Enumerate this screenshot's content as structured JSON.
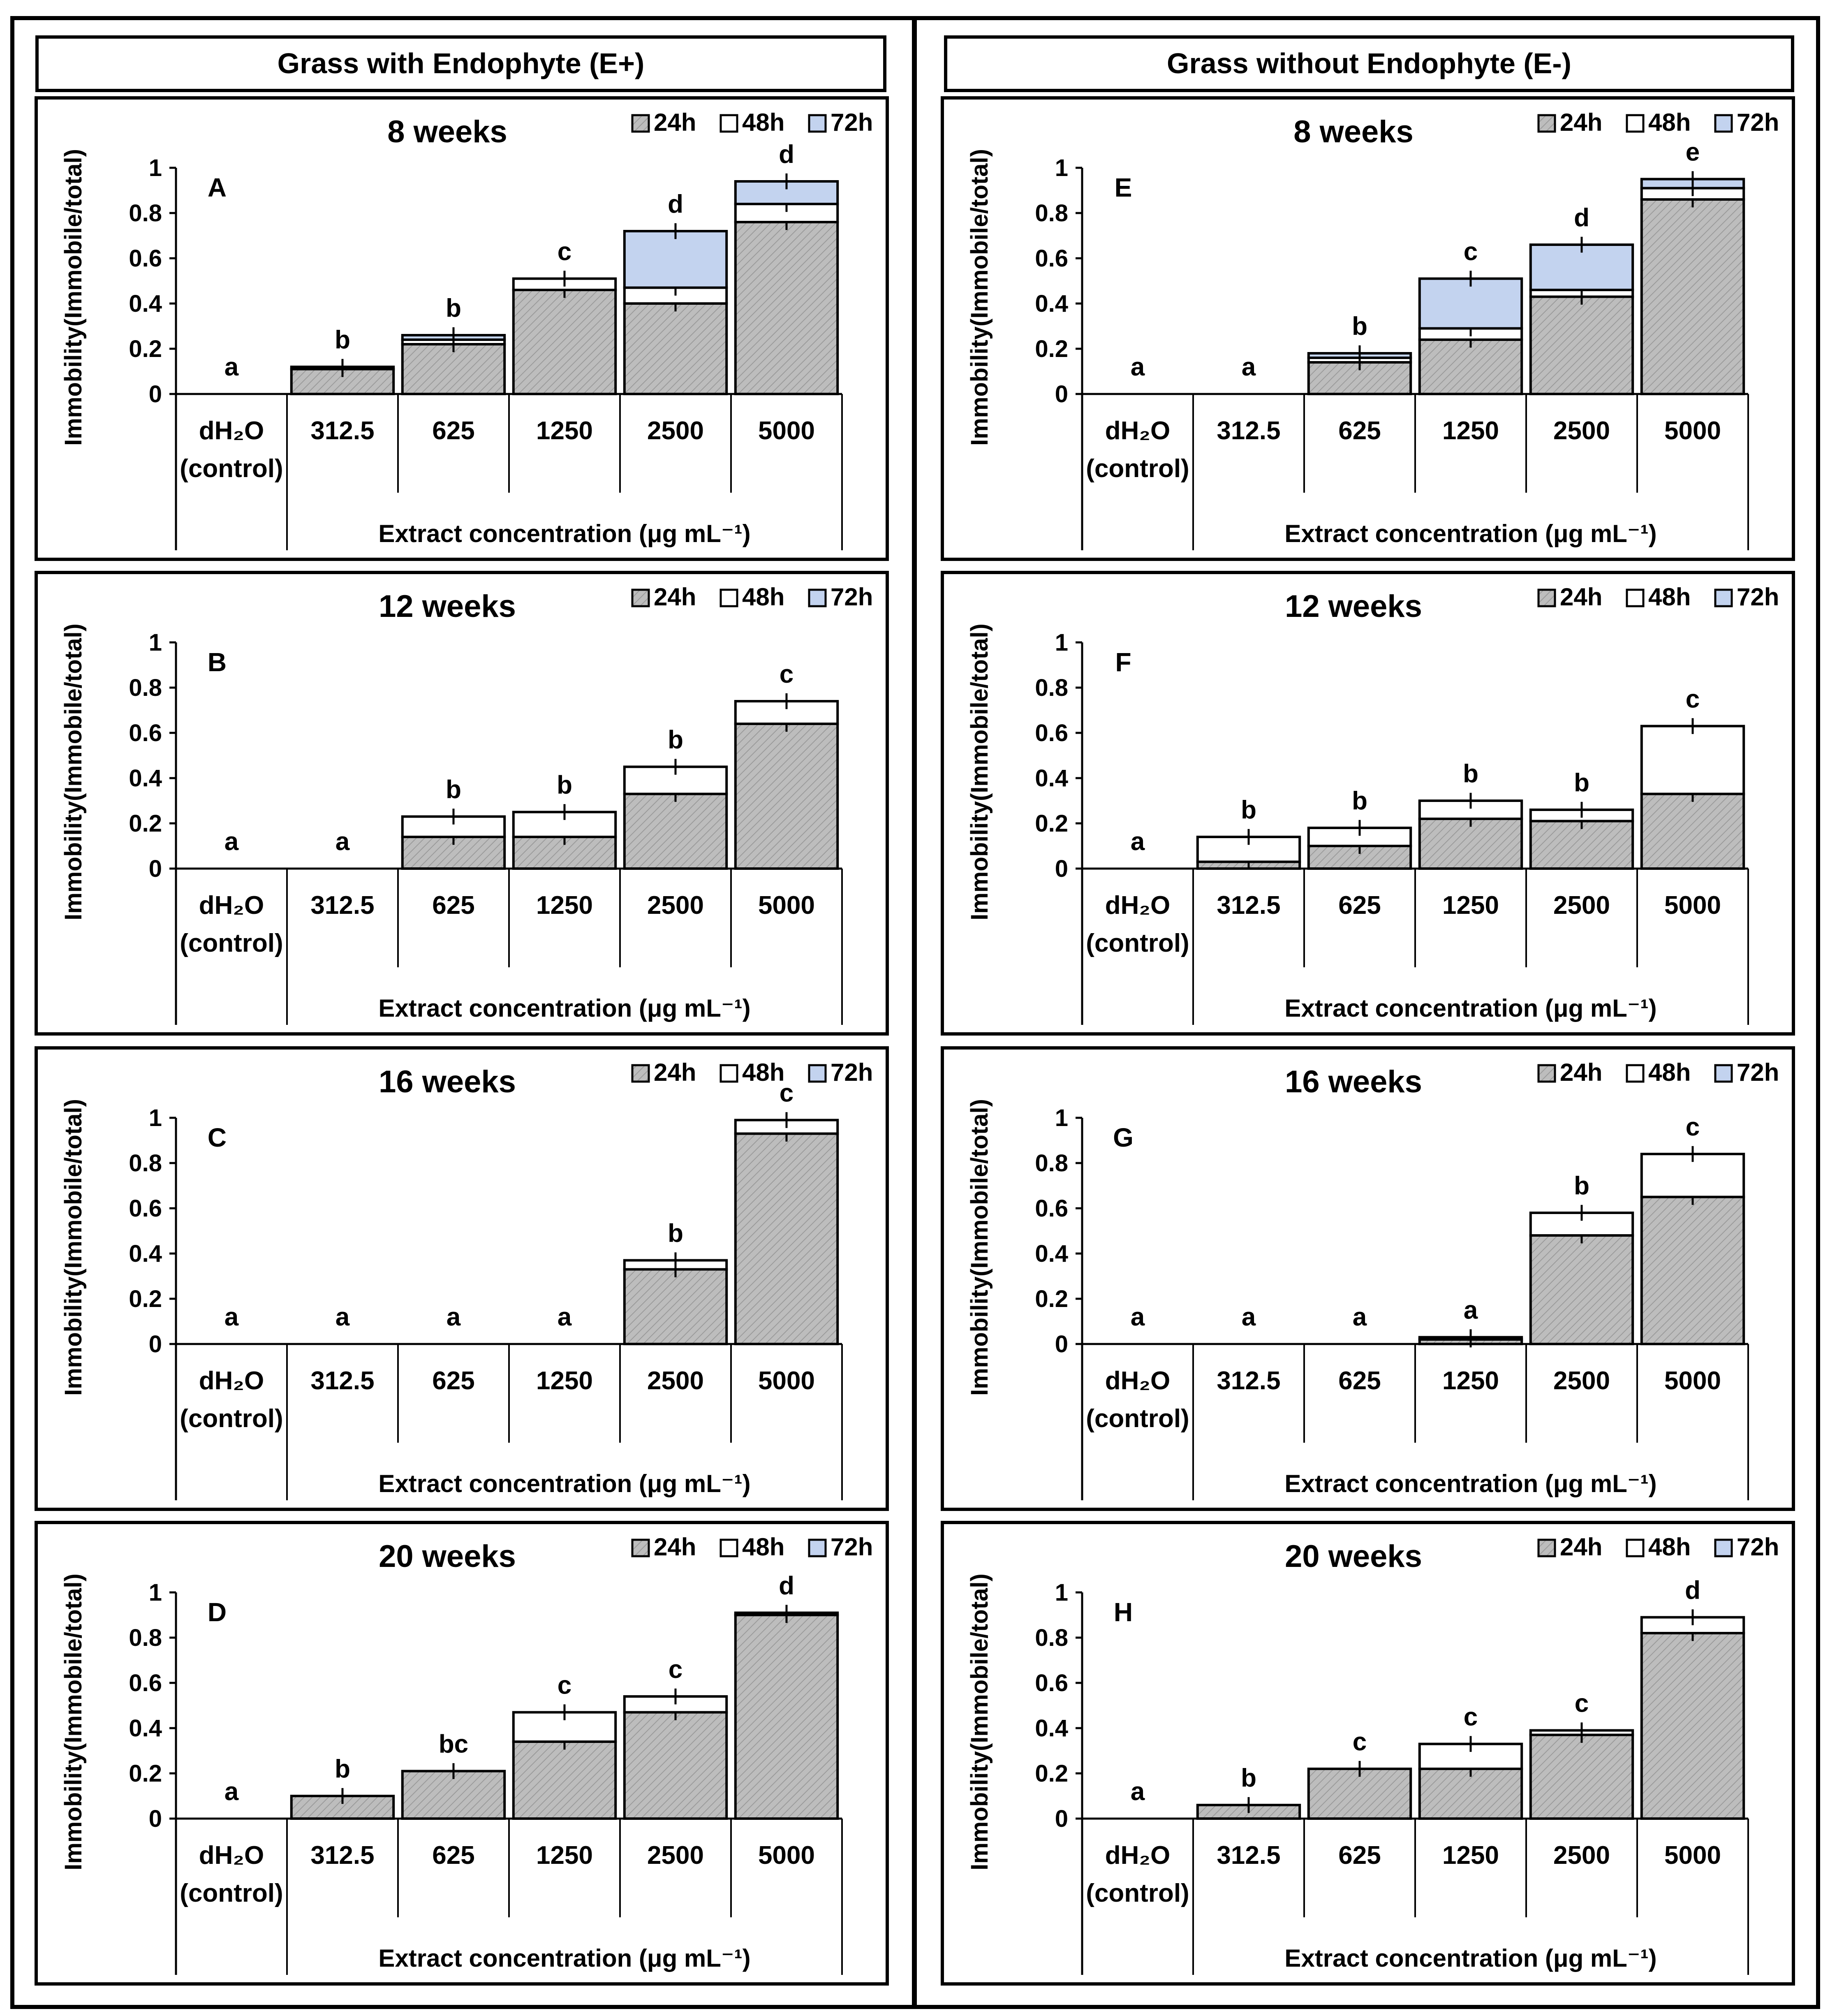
{
  "columns": [
    {
      "header": "Grass with Endophyte (E+)"
    },
    {
      "header": "Grass without Endophyte (E-)"
    }
  ],
  "legend": [
    {
      "label": "24h",
      "color": "#b8b8b8"
    },
    {
      "label": "48h",
      "color": "#ffffff"
    },
    {
      "label": "72h",
      "color": "#c3d3ef"
    }
  ],
  "ylabel": "Immobility(Immobile/total)",
  "xlabel": "Extract concentration (μg mL⁻¹)",
  "categories": [
    "dH₂O (control)",
    "312.5",
    "625",
    "1250",
    "2500",
    "5000"
  ],
  "yticks": [
    "0",
    "0.2",
    "0.4",
    "0.6",
    "0.8",
    "1"
  ],
  "chart_data": [
    {
      "type": "bar",
      "stacked": true,
      "title": "8 weeks",
      "panel": "A",
      "ylim": [
        0,
        1
      ],
      "categories": [
        "dH₂O (control)",
        "312.5",
        "625",
        "1250",
        "2500",
        "5000"
      ],
      "series": [
        {
          "name": "24h",
          "values": [
            0,
            0.11,
            0.22,
            0.46,
            0.4,
            0.76
          ]
        },
        {
          "name": "48h",
          "values": [
            0,
            0.01,
            0.02,
            0.05,
            0.07,
            0.08
          ]
        },
        {
          "name": "72h",
          "values": [
            0,
            0.0,
            0.02,
            0.0,
            0.25,
            0.1
          ]
        }
      ],
      "letters": [
        "a",
        "b",
        "b",
        "c",
        "d",
        "d"
      ]
    },
    {
      "type": "bar",
      "stacked": true,
      "title": "12 weeks",
      "panel": "B",
      "ylim": [
        0,
        1
      ],
      "categories": [
        "dH₂O (control)",
        "312.5",
        "625",
        "1250",
        "2500",
        "5000"
      ],
      "series": [
        {
          "name": "24h",
          "values": [
            0,
            0,
            0.14,
            0.14,
            0.33,
            0.64
          ]
        },
        {
          "name": "48h",
          "values": [
            0,
            0,
            0.09,
            0.11,
            0.12,
            0.1
          ]
        },
        {
          "name": "72h",
          "values": [
            0,
            0,
            0,
            0,
            0,
            0
          ]
        }
      ],
      "letters": [
        "a",
        "a",
        "b",
        "b",
        "b",
        "c"
      ]
    },
    {
      "type": "bar",
      "stacked": true,
      "title": "16 weeks",
      "panel": "C",
      "ylim": [
        0,
        1
      ],
      "categories": [
        "dH₂O (control)",
        "312.5",
        "625",
        "1250",
        "2500",
        "5000"
      ],
      "series": [
        {
          "name": "24h",
          "values": [
            0,
            0,
            0,
            0,
            0.33,
            0.93
          ]
        },
        {
          "name": "48h",
          "values": [
            0,
            0,
            0,
            0,
            0.04,
            0.06
          ]
        },
        {
          "name": "72h",
          "values": [
            0,
            0,
            0,
            0,
            0,
            0
          ]
        }
      ],
      "letters": [
        "a",
        "a",
        "a",
        "a",
        "b",
        "c"
      ]
    },
    {
      "type": "bar",
      "stacked": true,
      "title": "20 weeks",
      "panel": "D",
      "ylim": [
        0,
        1
      ],
      "categories": [
        "dH₂O (control)",
        "312.5",
        "625",
        "1250",
        "2500",
        "5000"
      ],
      "series": [
        {
          "name": "24h",
          "values": [
            0,
            0.1,
            0.21,
            0.34,
            0.47,
            0.9
          ]
        },
        {
          "name": "48h",
          "values": [
            0,
            0,
            0,
            0.13,
            0.07,
            0.01
          ]
        },
        {
          "name": "72h",
          "values": [
            0,
            0,
            0,
            0,
            0,
            0
          ]
        }
      ],
      "letters": [
        "a",
        "b",
        "bc",
        "c",
        "c",
        "d"
      ]
    },
    {
      "type": "bar",
      "stacked": true,
      "title": "8 weeks",
      "panel": "E",
      "ylim": [
        0,
        1
      ],
      "categories": [
        "dH₂O (control)",
        "312.5",
        "625",
        "1250",
        "2500",
        "5000"
      ],
      "series": [
        {
          "name": "24h",
          "values": [
            0,
            0,
            0.14,
            0.24,
            0.43,
            0.86
          ]
        },
        {
          "name": "48h",
          "values": [
            0,
            0,
            0.02,
            0.05,
            0.03,
            0.05
          ]
        },
        {
          "name": "72h",
          "values": [
            0,
            0,
            0.02,
            0.22,
            0.2,
            0.04
          ]
        }
      ],
      "letters": [
        "a",
        "a",
        "b",
        "c",
        "d",
        "e"
      ]
    },
    {
      "type": "bar",
      "stacked": true,
      "title": "12 weeks",
      "panel": "F",
      "ylim": [
        0,
        1
      ],
      "categories": [
        "dH₂O (control)",
        "312.5",
        "625",
        "1250",
        "2500",
        "5000"
      ],
      "series": [
        {
          "name": "24h",
          "values": [
            0,
            0.03,
            0.1,
            0.22,
            0.21,
            0.33
          ]
        },
        {
          "name": "48h",
          "values": [
            0,
            0.11,
            0.08,
            0.08,
            0.05,
            0.3
          ]
        },
        {
          "name": "72h",
          "values": [
            0,
            0,
            0,
            0,
            0,
            0
          ]
        }
      ],
      "letters": [
        "a",
        "b",
        "b",
        "b",
        "b",
        "c"
      ]
    },
    {
      "type": "bar",
      "stacked": true,
      "title": "16 weeks",
      "panel": "G",
      "ylim": [
        0,
        1
      ],
      "categories": [
        "dH₂O (control)",
        "312.5",
        "625",
        "1250",
        "2500",
        "5000"
      ],
      "series": [
        {
          "name": "24h",
          "values": [
            0,
            0,
            0,
            0.02,
            0.48,
            0.65
          ]
        },
        {
          "name": "48h",
          "values": [
            0,
            0,
            0,
            0.01,
            0.1,
            0.19
          ]
        },
        {
          "name": "72h",
          "values": [
            0,
            0,
            0,
            0,
            0,
            0
          ]
        }
      ],
      "letters": [
        "a",
        "a",
        "a",
        "a",
        "b",
        "c"
      ]
    },
    {
      "type": "bar",
      "stacked": true,
      "title": "20 weeks",
      "panel": "H",
      "ylim": [
        0,
        1
      ],
      "categories": [
        "dH₂O (control)",
        "312.5",
        "625",
        "1250",
        "2500",
        "5000"
      ],
      "series": [
        {
          "name": "24h",
          "values": [
            0,
            0.06,
            0.22,
            0.22,
            0.37,
            0.82
          ]
        },
        {
          "name": "48h",
          "values": [
            0,
            0,
            0,
            0.11,
            0.02,
            0.07
          ]
        },
        {
          "name": "72h",
          "values": [
            0,
            0,
            0,
            0,
            0,
            0
          ]
        }
      ],
      "letters": [
        "a",
        "b",
        "c",
        "c",
        "c",
        "d"
      ]
    }
  ]
}
